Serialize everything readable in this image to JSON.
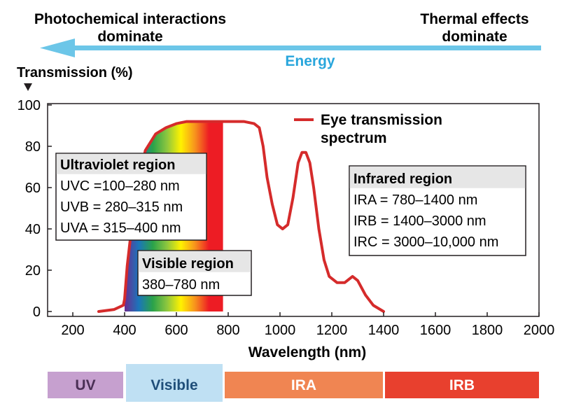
{
  "header": {
    "left_line1": "Photochemical interactions",
    "left_line2": "dominate",
    "right_line1": "Thermal effects",
    "right_line2": "dominate",
    "arrow_label": "Energy"
  },
  "legend": {
    "line1": "Eye transmission",
    "line2": "spectrum"
  },
  "boxes": {
    "uv": {
      "title": "Ultraviolet region",
      "lines": [
        "UVC =100–280 nm",
        "UVB = 280–315 nm",
        "UVA = 315–400 nm"
      ]
    },
    "visible": {
      "title": "Visible region",
      "lines": [
        "380–780 nm"
      ]
    },
    "ir": {
      "title": "Infrared region",
      "lines": [
        "IRA = 780–1400 nm",
        "IRB = 1400–3000 nm",
        "IRC = 3000–10,000 nm"
      ]
    }
  },
  "bands": [
    {
      "label": "UV",
      "color": "#c6a0cf",
      "text_color": "#4a2f55"
    },
    {
      "label": "Visible",
      "color": "#bfe0f3",
      "text_color": "#1f4e79"
    },
    {
      "label": "IRA",
      "color": "#f08552",
      "text_color": "#ffffff"
    },
    {
      "label": "IRB",
      "color": "#e8402e",
      "text_color": "#ffffff"
    }
  ],
  "colors": {
    "curve": "#d52b2b",
    "arrow": "#6cc6e8",
    "energy": "#29a6dc",
    "box_header": "#e6e6e6"
  },
  "chart_data": {
    "type": "line",
    "ylabel": "Transmission (%)",
    "xlabel": "Wavelength (nm)",
    "xlim": [
      100,
      2000
    ],
    "ylim": [
      0,
      100
    ],
    "x_ticks": [
      "200",
      "400",
      "600",
      "800",
      "1000",
      "1200",
      "1400",
      "1600",
      "1800",
      "2000"
    ],
    "y_ticks": [
      "0",
      "20",
      "40",
      "60",
      "80",
      "100"
    ],
    "series": [
      {
        "name": "Eye transmission spectrum",
        "x": [
          300,
          360,
          395,
          400,
          410,
          440,
          480,
          520,
          560,
          600,
          640,
          700,
          780,
          860,
          900,
          920,
          935,
          950,
          970,
          990,
          1010,
          1030,
          1050,
          1070,
          1085,
          1100,
          1115,
          1130,
          1150,
          1170,
          1190,
          1220,
          1250,
          1280,
          1300,
          1330,
          1360,
          1400
        ],
        "y": [
          0,
          1,
          3,
          6,
          22,
          55,
          78,
          86,
          89,
          91,
          92,
          92,
          92,
          92,
          91,
          89,
          80,
          65,
          52,
          42,
          40,
          42,
          55,
          72,
          77,
          77,
          72,
          60,
          40,
          25,
          17,
          14,
          14,
          17,
          15,
          8,
          3,
          0
        ]
      }
    ],
    "spectrum_fill": {
      "x_start": 400,
      "x_end": 780,
      "colors": [
        "#6a2c91",
        "#1b75bb",
        "#2aa24a",
        "#8cc63f",
        "#fff200",
        "#f7941d",
        "#ed1c24",
        "#ed1c24"
      ]
    },
    "grid": false
  }
}
